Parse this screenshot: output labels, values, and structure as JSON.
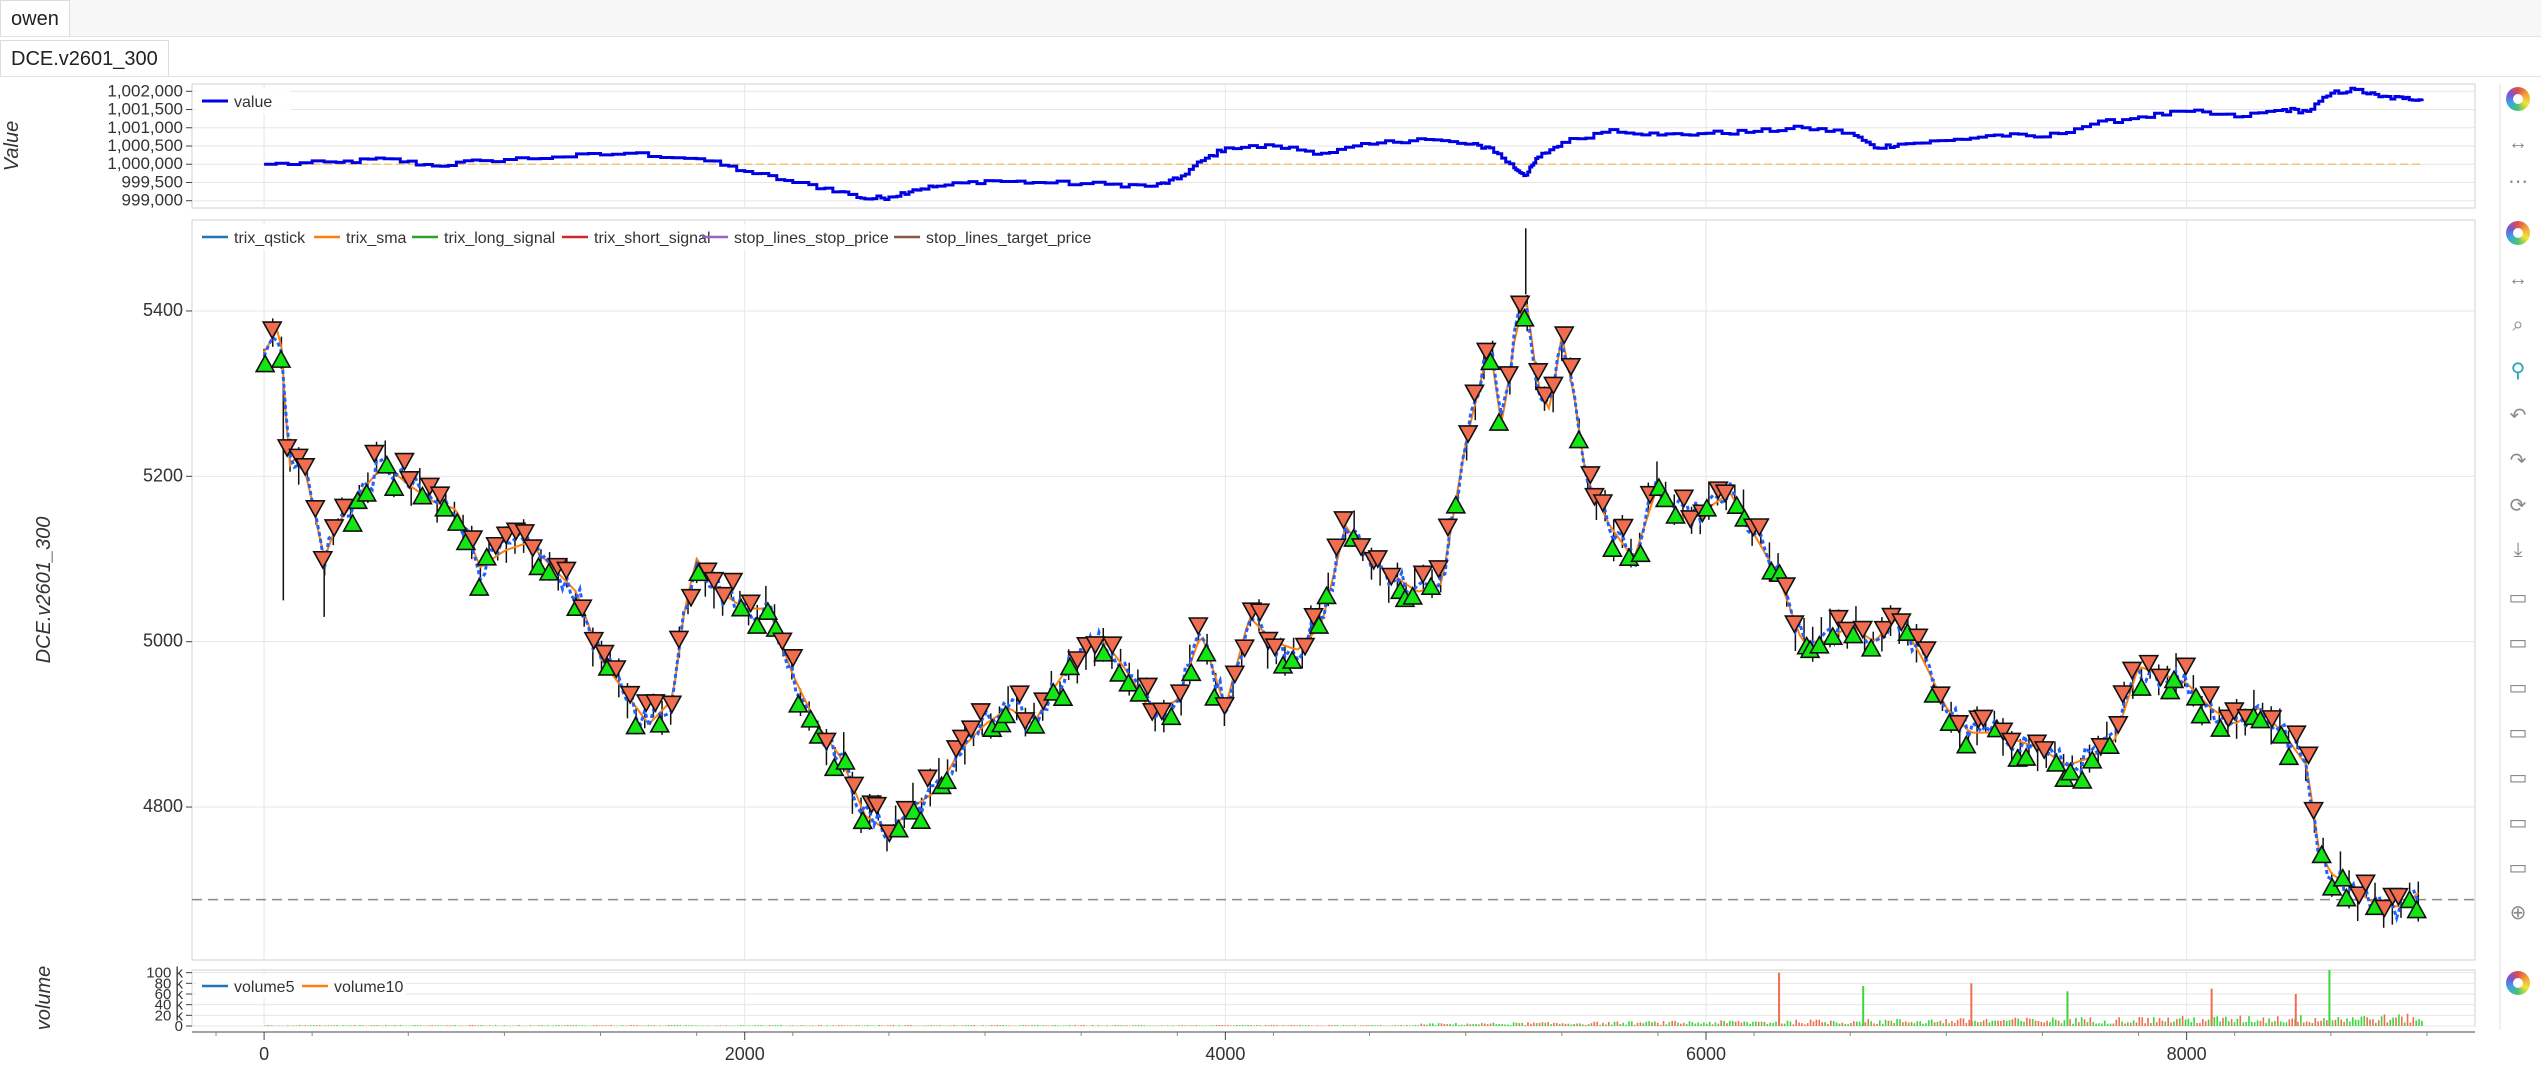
{
  "tabs": {
    "top": "owen",
    "sub": "DCE.v2601_300"
  },
  "colors": {
    "up": "#13e613",
    "down": "#f06d50",
    "equity": "#0000e6",
    "trix": "#2060ff",
    "sma": "#ff7f0e",
    "ref": "#f5c46b"
  },
  "chart_data": [
    {
      "type": "line",
      "ylabel": "Value",
      "series": [
        {
          "name": "value"
        }
      ],
      "ylim": [
        998800,
        1002200
      ],
      "yticks": [
        "1,002,000",
        "1,001,500",
        "1,001,000",
        "1,000,500",
        "1,000,000",
        "999,500",
        "999,000"
      ],
      "ytick_values": [
        1002000,
        1001500,
        1001000,
        1000500,
        1000000,
        999500,
        999000
      ],
      "reference_line": 1000000,
      "x": [
        0,
        300,
        500,
        700,
        900,
        1200,
        1500,
        1800,
        2000,
        2200,
        2400,
        2500,
        2600,
        2700,
        2800,
        3000,
        3200,
        3500,
        3700,
        3800,
        3900,
        4000,
        4200,
        4400,
        4600,
        4800,
        5000,
        5100,
        5200,
        5250,
        5300,
        5400,
        5600,
        5800,
        6000,
        6200,
        6400,
        6600,
        6700,
        6800,
        7000,
        7200,
        7400,
        7600,
        7800,
        8000,
        8200,
        8400,
        8500,
        8600,
        8700,
        8800,
        8900,
        8980
      ],
      "values": [
        1000000,
        1000050,
        1000150,
        999950,
        1000100,
        1000200,
        1000300,
        1000150,
        999800,
        999500,
        999250,
        999050,
        999100,
        999300,
        999400,
        999550,
        999500,
        999450,
        999400,
        999600,
        1000100,
        1000450,
        1000500,
        1000300,
        1000550,
        1000700,
        1000550,
        1000450,
        999900,
        999700,
        1000200,
        1000600,
        1000950,
        1000800,
        1000850,
        1000900,
        1001000,
        1000850,
        1000450,
        1000550,
        1000650,
        1000800,
        1000750,
        1001100,
        1001300,
        1001450,
        1001300,
        1001500,
        1001450,
        1001950,
        1002050,
        1001850,
        1001800,
        1001800
      ]
    },
    {
      "type": "line",
      "ylabel": "DCE.v2601_300",
      "series": [
        {
          "name": "trix_qstick"
        },
        {
          "name": "trix_sma"
        },
        {
          "name": "trix_long_signal"
        },
        {
          "name": "trix_short_signal"
        },
        {
          "name": "stop_lines_stop_price"
        },
        {
          "name": "stop_lines_target_price"
        }
      ],
      "ylim": [
        4615,
        5510
      ],
      "yticks": [
        "5400",
        "5200",
        "5000",
        "4800"
      ],
      "ytick_values": [
        5400,
        5200,
        5000,
        4800
      ],
      "reference_line": 4688,
      "x": [
        0,
        60,
        80,
        100,
        150,
        200,
        250,
        300,
        400,
        500,
        600,
        700,
        800,
        900,
        1000,
        1100,
        1200,
        1300,
        1400,
        1500,
        1600,
        1700,
        1750,
        1800,
        1900,
        2000,
        2100,
        2200,
        2300,
        2400,
        2500,
        2600,
        2700,
        2800,
        2900,
        3000,
        3100,
        3200,
        3300,
        3400,
        3500,
        3600,
        3700,
        3800,
        3900,
        4000,
        4100,
        4200,
        4300,
        4400,
        4500,
        4600,
        4700,
        4800,
        4900,
        5000,
        5050,
        5100,
        5150,
        5200,
        5250,
        5300,
        5350,
        5400,
        5450,
        5500,
        5600,
        5700,
        5800,
        5900,
        6000,
        6100,
        6200,
        6300,
        6400,
        6500,
        6600,
        6700,
        6800,
        6900,
        7000,
        7100,
        7200,
        7300,
        7400,
        7500,
        7600,
        7700,
        7800,
        7900,
        8000,
        8100,
        8200,
        8300,
        8400,
        8500,
        8550,
        8600,
        8700,
        8800,
        8900,
        8980
      ],
      "values": [
        5350,
        5380,
        5340,
        5210,
        5230,
        5170,
        5100,
        5140,
        5180,
        5215,
        5190,
        5170,
        5160,
        5090,
        5110,
        5120,
        5090,
        5060,
        4980,
        4940,
        4900,
        4930,
        5040,
        5100,
        5060,
        5040,
        5040,
        4960,
        4900,
        4860,
        4790,
        4770,
        4800,
        4820,
        4870,
        4900,
        4920,
        4900,
        4950,
        4990,
        5000,
        4960,
        4910,
        4930,
        5010,
        4920,
        5030,
        5000,
        4990,
        5020,
        5140,
        5100,
        5080,
        5060,
        5070,
        5240,
        5300,
        5360,
        5260,
        5360,
        5420,
        5310,
        5280,
        5370,
        5300,
        5200,
        5140,
        5100,
        5190,
        5150,
        5160,
        5180,
        5130,
        5080,
        5000,
        5000,
        5020,
        5000,
        5030,
        4980,
        4920,
        4890,
        4890,
        4880,
        4870,
        4850,
        4860,
        4880,
        4970,
        4960,
        4950,
        4920,
        4900,
        4920,
        4890,
        4850,
        4750,
        4720,
        4700,
        4680,
        4680,
        4700
      ]
    },
    {
      "type": "bar",
      "ylabel": "volume",
      "series": [
        {
          "name": "volume5"
        },
        {
          "name": "volume10"
        }
      ],
      "ylim": [
        0,
        105000
      ],
      "yticks": [
        "100 k",
        "80 k",
        "60 k",
        "40 k",
        "20 k",
        "0"
      ],
      "ytick_values": [
        100000,
        80000,
        60000,
        40000,
        20000,
        0
      ],
      "x_range": [
        0,
        9000
      ],
      "xticks": [
        "0",
        "2000",
        "4000",
        "6000",
        "8000"
      ],
      "xtick_values": [
        0,
        2000,
        4000,
        6000,
        8000
      ],
      "note_spikes": [
        [
          6300,
          100000
        ],
        [
          6650,
          75000
        ],
        [
          7100,
          80000
        ],
        [
          7500,
          65000
        ],
        [
          8100,
          70000
        ],
        [
          8590,
          105000
        ],
        [
          8450,
          60000
        ]
      ]
    }
  ]
}
